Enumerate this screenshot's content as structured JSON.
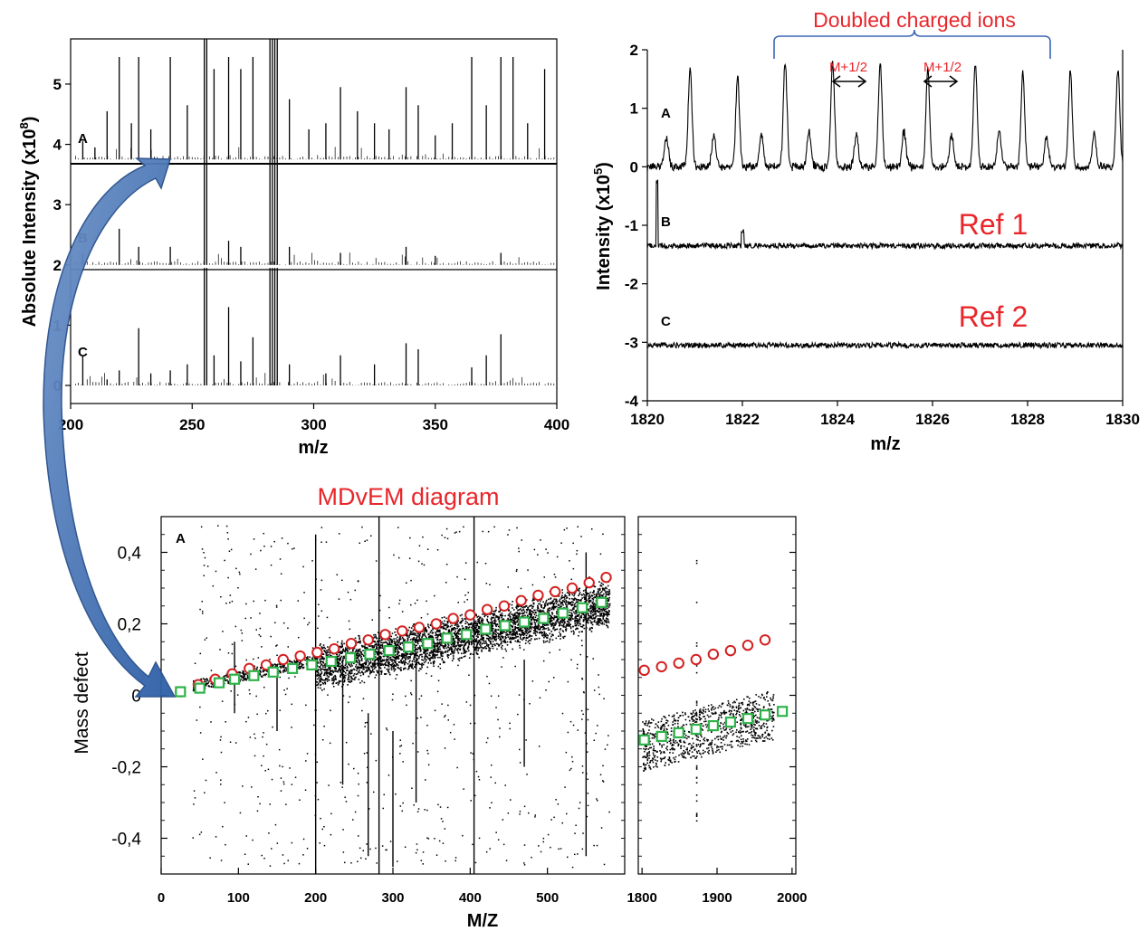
{
  "chart_data": [
    {
      "type": "bar",
      "panel": "absolute-intensity-spectra",
      "xlabel": "m/z",
      "ylabel": "Absolute Intensity (x10",
      "ylabel_exp": "8",
      "ylabel_close": ")",
      "xlim": [
        200,
        400
      ],
      "ylim": [
        -0.3,
        5.75
      ],
      "x_ticks": [
        "200",
        "250",
        "300",
        "350",
        "400"
      ],
      "y_ticks": [
        "0",
        "1",
        "2",
        "3",
        "4",
        "5"
      ],
      "series": [
        {
          "name": "A",
          "baseline": 3.75,
          "x": [
            205,
            210,
            215,
            220,
            225,
            228,
            233,
            241,
            248,
            255,
            256,
            259,
            265,
            270,
            275,
            282,
            283,
            284,
            285,
            290,
            298,
            305,
            311,
            318,
            325,
            331,
            338,
            343,
            350,
            357,
            365,
            371,
            377,
            382,
            388,
            395
          ],
          "values": [
            0.3,
            0.2,
            0.8,
            1.7,
            0.6,
            1.7,
            0.5,
            1.7,
            0.9,
            2.0,
            2.0,
            1.5,
            1.7,
            1.5,
            1.7,
            2.0,
            2.0,
            2.0,
            2.0,
            1.0,
            0.5,
            0.6,
            1.2,
            0.8,
            0.6,
            0.5,
            1.2,
            0.9,
            0.4,
            0.6,
            1.7,
            0.9,
            1.7,
            1.7,
            0.6,
            1.5
          ]
        },
        {
          "name": "B",
          "baseline": 2.0,
          "x": [
            205,
            220,
            228,
            241,
            255,
            256,
            265,
            270,
            282,
            283,
            284,
            285,
            290,
            311,
            338,
            350,
            377
          ],
          "values": [
            0.2,
            0.6,
            0.3,
            0.3,
            1.75,
            1.75,
            0.4,
            0.3,
            1.75,
            1.75,
            1.75,
            1.75,
            0.3,
            0.2,
            0.3,
            0.15,
            0.2
          ]
        },
        {
          "name": "C",
          "baseline": 0.0,
          "x": [
            205,
            215,
            220,
            228,
            233,
            241,
            248,
            255,
            256,
            259,
            265,
            270,
            275,
            282,
            283,
            284,
            285,
            290,
            305,
            311,
            325,
            338,
            343,
            365,
            371,
            377
          ],
          "values": [
            0.5,
            0.1,
            0.25,
            0.95,
            0.2,
            0.25,
            0.35,
            1.95,
            1.95,
            0.5,
            1.3,
            0.4,
            0.8,
            1.95,
            1.95,
            1.95,
            1.95,
            0.35,
            0.2,
            0.5,
            0.35,
            0.7,
            0.6,
            0.3,
            0.5,
            0.85
          ]
        }
      ]
    },
    {
      "type": "line",
      "panel": "doubled-charge-spectra",
      "xlabel": "m/z",
      "ylabel": "Intensity (x10",
      "ylabel_exp": "5",
      "ylabel_close": ")",
      "xlim": [
        1820,
        1830
      ],
      "ylim": [
        -4,
        2
      ],
      "x_ticks": [
        "1820",
        "1822",
        "1824",
        "1826",
        "1828",
        "1830"
      ],
      "y_ticks": [
        "-4",
        "-3",
        "-2",
        "-1",
        "0",
        "1",
        "2"
      ],
      "peaks": {
        "major_x": [
          1820.9,
          1821.9,
          1822.9,
          1823.9,
          1824.9,
          1825.9,
          1826.9,
          1827.9,
          1828.9,
          1829.9
        ],
        "major_y": [
          1.7,
          1.55,
          1.8,
          1.75,
          1.78,
          1.65,
          1.75,
          1.6,
          1.65,
          1.7
        ],
        "minor_x": [
          1820.4,
          1821.4,
          1822.4,
          1823.4,
          1824.4,
          1825.4,
          1826.4,
          1827.4,
          1828.4,
          1829.4
        ],
        "minor_y": [
          0.5,
          0.55,
          0.55,
          0.6,
          0.55,
          0.6,
          0.55,
          0.6,
          0.5,
          0.55
        ]
      },
      "series": [
        {
          "name": "A",
          "offset": 0
        },
        {
          "name": "B",
          "offset": -1.35
        },
        {
          "name": "C",
          "offset": -3.05
        }
      ],
      "title": "Doubled charged ions",
      "annotations": [
        {
          "text": "M+1/2",
          "x": 1824.2
        },
        {
          "text": "M+1/2",
          "x": 1826.2
        },
        {
          "text": "Ref 1",
          "x": 1827.2,
          "y": -1.0
        },
        {
          "text": "Ref 2",
          "x": 1827.2,
          "y": -2.6
        }
      ]
    },
    {
      "type": "scatter",
      "panel": "mdvem-left",
      "title": "MDvEM diagram",
      "panel_label": "A",
      "xlabel": "M/Z",
      "ylabel": "Mass defect",
      "xlim": [
        0,
        600
      ],
      "ylim": [
        -0.5,
        0.5
      ],
      "x_ticks": [
        "0",
        "100",
        "200",
        "300",
        "400",
        "500"
      ],
      "y_ticks": [
        "0,4",
        "0,2",
        "0",
        "-0,2",
        "-0,4"
      ],
      "red_circles": {
        "x": [
          25,
          48,
          70,
          92,
          114,
          136,
          158,
          180,
          202,
          224,
          246,
          268,
          290,
          312,
          334,
          356,
          378,
          400,
          422,
          444,
          466,
          488,
          510,
          532,
          554,
          576
        ],
        "y": [
          0.01,
          0.03,
          0.045,
          0.06,
          0.075,
          0.085,
          0.1,
          0.11,
          0.12,
          0.13,
          0.145,
          0.155,
          0.17,
          0.18,
          0.19,
          0.2,
          0.215,
          0.225,
          0.24,
          0.25,
          0.265,
          0.28,
          0.29,
          0.3,
          0.315,
          0.33
        ]
      },
      "green_squares": {
        "x": [
          25,
          50,
          75,
          95,
          120,
          145,
          170,
          195,
          220,
          245,
          270,
          295,
          320,
          345,
          370,
          395,
          420,
          445,
          470,
          495,
          520,
          545,
          570
        ],
        "y": [
          0.01,
          0.02,
          0.035,
          0.045,
          0.055,
          0.065,
          0.075,
          0.085,
          0.095,
          0.105,
          0.115,
          0.125,
          0.135,
          0.145,
          0.16,
          0.17,
          0.185,
          0.195,
          0.205,
          0.215,
          0.23,
          0.245,
          0.26
        ]
      }
    },
    {
      "type": "scatter",
      "panel": "mdvem-right",
      "xlim": [
        1795,
        2005
      ],
      "ylim": [
        -0.5,
        0.5
      ],
      "x_ticks": [
        "1800",
        "1900",
        "2000"
      ],
      "red_circles": {
        "x": [
          1803,
          1826,
          1849,
          1872,
          1895,
          1918,
          1941,
          1964
        ],
        "y": [
          0.07,
          0.08,
          0.09,
          0.1,
          0.115,
          0.125,
          0.14,
          0.155
        ]
      },
      "green_squares": {
        "x": [
          1803,
          1826,
          1849,
          1872,
          1895,
          1918,
          1941,
          1964,
          1987
        ],
        "y": [
          -0.125,
          -0.115,
          -0.105,
          -0.095,
          -0.085,
          -0.075,
          -0.065,
          -0.055,
          -0.045
        ]
      }
    }
  ]
}
